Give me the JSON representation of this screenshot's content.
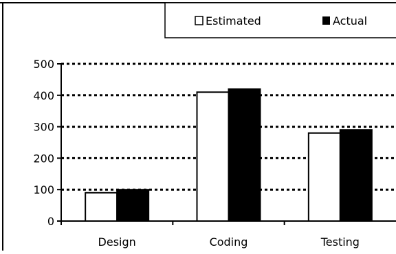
{
  "chart_data": {
    "type": "bar",
    "title": "",
    "xlabel": "",
    "ylabel": "",
    "categories": [
      "Design",
      "Coding",
      "Testing"
    ],
    "series": [
      {
        "name": "Estimated",
        "values": [
          90,
          410,
          280
        ],
        "color": "#ffffff"
      },
      {
        "name": "Actual",
        "values": [
          100,
          420,
          290
        ],
        "color": "#000000"
      }
    ],
    "ylim": [
      0,
      500
    ],
    "yticks": [
      0,
      100,
      200,
      300,
      400,
      500
    ],
    "grid": "horizontal-dotted",
    "legend_position": "top"
  }
}
